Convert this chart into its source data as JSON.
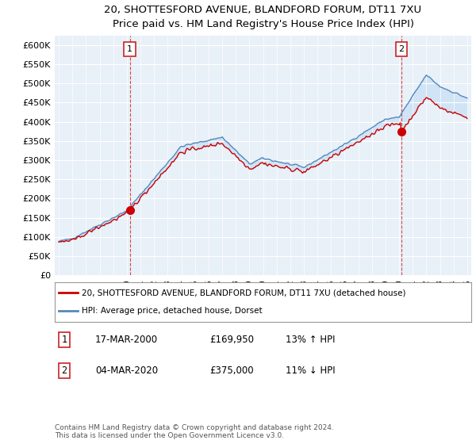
{
  "title": "20, SHOTTESFORD AVENUE, BLANDFORD FORUM, DT11 7XU",
  "subtitle": "Price paid vs. HM Land Registry's House Price Index (HPI)",
  "ylim": [
    0,
    625000
  ],
  "yticks": [
    0,
    50000,
    100000,
    150000,
    200000,
    250000,
    300000,
    350000,
    400000,
    450000,
    500000,
    550000,
    600000
  ],
  "line1_color": "#cc0000",
  "line2_color": "#5588bb",
  "fill_color": "#d0e4f5",
  "vline_color": "#dd4444",
  "legend1": "20, SHOTTESFORD AVENUE, BLANDFORD FORUM, DT11 7XU (detached house)",
  "legend2": "HPI: Average price, detached house, Dorset",
  "transaction1_date": "17-MAR-2000",
  "transaction1_price": "£169,950",
  "transaction1_hpi": "13% ↑ HPI",
  "transaction1_year": 2000.21,
  "transaction1_value": 169950,
  "transaction2_date": "04-MAR-2020",
  "transaction2_price": "£375,000",
  "transaction2_hpi": "11% ↓ HPI",
  "transaction2_year": 2020.17,
  "transaction2_value": 375000,
  "footer": "Contains HM Land Registry data © Crown copyright and database right 2024.\nThis data is licensed under the Open Government Licence v3.0.",
  "background_color": "#ffffff",
  "chart_bg_color": "#e8f0f8",
  "grid_color": "#ffffff"
}
